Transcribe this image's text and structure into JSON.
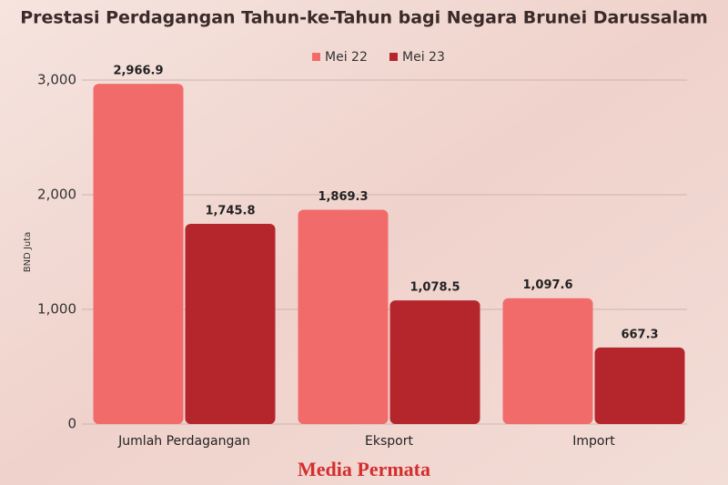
{
  "chart_data": {
    "type": "bar",
    "title": "Prestasi Perdagangan Tahun-ke-Tahun bagi Negara Brunei Darussalam",
    "y_label": "BND Juta",
    "categories": [
      "Jumlah Perdagangan",
      "Eksport",
      "Import"
    ],
    "series": [
      {
        "name": "Mei 22",
        "color": "#f26b6b",
        "values": [
          2966.9,
          1869.3,
          1097.6
        ],
        "value_labels": [
          "2,966.9",
          "1,869.3",
          "1,097.6"
        ]
      },
      {
        "name": "Mei 23",
        "color": "#b5262c",
        "values": [
          1745.8,
          1078.5,
          667.3
        ],
        "value_labels": [
          "1,745.8",
          "1,078.5",
          "667.3"
        ]
      }
    ],
    "ylim": [
      0,
      3000
    ],
    "yticks": [
      0,
      {
        "value": 1000,
        "label": "1,000"
      },
      {
        "value": 2000,
        "label": "2,000"
      },
      {
        "value": 3000,
        "label": "3,000"
      }
    ],
    "grid": true,
    "legend": "top"
  },
  "footer": "Media Permata"
}
